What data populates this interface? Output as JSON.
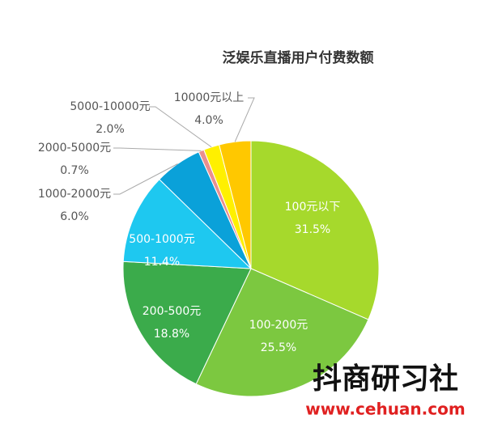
{
  "chart_data": {
    "type": "pie",
    "title": "泛娱乐直播用户付费数额",
    "categories": [
      "100元以下",
      "100-200元",
      "200-500元",
      "500-1000元",
      "1000-2000元",
      "2000-5000元",
      "5000-10000元",
      "10000元以上"
    ],
    "values": [
      31.5,
      25.5,
      18.8,
      11.4,
      6.0,
      0.7,
      2.0,
      4.0
    ],
    "value_labels": [
      "31.5%",
      "25.5%",
      "18.8%",
      "11.4%",
      "6.0%",
      "0.7%",
      "2.0%",
      "4.0%"
    ],
    "colors": [
      "#a6d92c",
      "#7cc840",
      "#3bab4b",
      "#1ec8f0",
      "#0aa1d9",
      "#ea8f8f",
      "#fff000",
      "#ffc800"
    ]
  },
  "watermark": {
    "brand": "抖商研习社",
    "url": "www.cehuan.com"
  }
}
